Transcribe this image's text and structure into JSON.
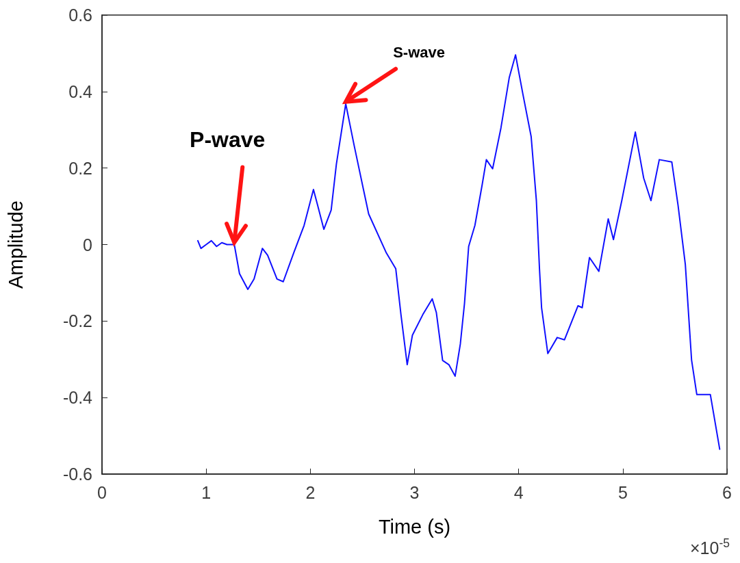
{
  "chart_data": {
    "type": "line",
    "xlabel": "Time (s)",
    "ylabel": "Amplitude",
    "xlim": [
      0,
      6
    ],
    "xticks": [
      0,
      1,
      2,
      3,
      4,
      5,
      6
    ],
    "ylim": [
      -0.6,
      0.6
    ],
    "yticks": [
      -0.6,
      -0.4,
      -0.2,
      0,
      0.2,
      0.4,
      0.6
    ],
    "grid": false,
    "annotations": [
      {
        "text": "P-wave",
        "x": 1.27,
        "y": 0.0
      },
      {
        "text": "S-wave",
        "x": 2.34,
        "y": 0.368
      },
      "×10$^{-5}$"
    ],
    "series": [
      {
        "color": "#1010ff",
        "x": [
          0.92,
          0.95,
          1.0,
          1.05,
          1.1,
          1.15,
          1.2,
          1.27,
          1.32,
          1.4,
          1.46,
          1.54,
          1.59,
          1.68,
          1.74,
          1.84,
          1.94,
          2.03,
          2.07,
          2.13,
          2.2,
          2.25,
          2.34,
          2.42,
          2.51,
          2.56,
          2.73,
          2.82,
          2.87,
          2.93,
          2.98,
          3.08,
          3.17,
          3.21,
          3.27,
          3.33,
          3.39,
          3.44,
          3.48,
          3.52,
          3.58,
          3.65,
          3.69,
          3.75,
          3.83,
          3.91,
          3.97,
          4.04,
          4.12,
          4.17,
          4.2,
          4.22,
          4.28,
          4.37,
          4.44,
          4.57,
          4.61,
          4.68,
          4.77,
          4.86,
          4.91,
          4.99,
          5.12,
          5.2,
          5.27,
          5.35,
          5.47,
          5.53,
          5.6,
          5.66,
          5.71,
          5.84,
          5.93
        ],
        "values": [
          0.01,
          -0.01,
          0.0,
          0.01,
          -0.005,
          0.005,
          0.0,
          0.0,
          -0.076,
          -0.117,
          -0.09,
          -0.01,
          -0.028,
          -0.09,
          -0.097,
          -0.022,
          0.05,
          0.144,
          0.103,
          0.04,
          0.09,
          0.21,
          0.368,
          0.26,
          0.144,
          0.08,
          -0.022,
          -0.063,
          -0.183,
          -0.314,
          -0.237,
          -0.183,
          -0.142,
          -0.178,
          -0.303,
          -0.314,
          -0.344,
          -0.26,
          -0.154,
          -0.005,
          0.05,
          0.157,
          0.222,
          0.198,
          0.305,
          0.437,
          0.496,
          0.394,
          0.282,
          0.115,
          -0.064,
          -0.165,
          -0.285,
          -0.243,
          -0.249,
          -0.16,
          -0.165,
          -0.034,
          -0.07,
          0.067,
          0.013,
          0.115,
          0.294,
          0.174,
          0.115,
          0.222,
          0.216,
          0.103,
          -0.052,
          -0.302,
          -0.392,
          -0.392,
          -0.535
        ]
      }
    ]
  }
}
